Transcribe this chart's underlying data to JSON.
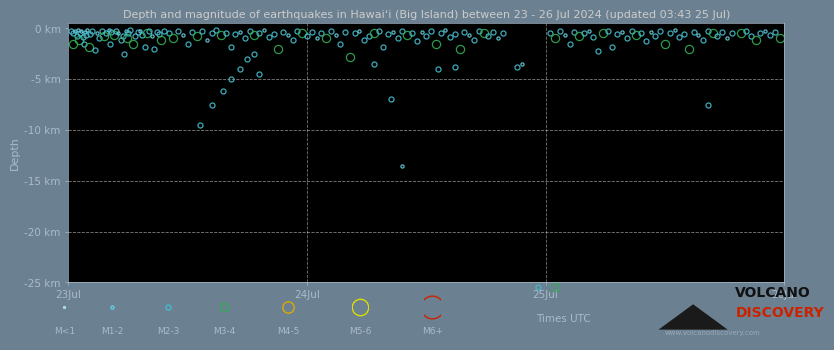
{
  "title": "Depth and magnitude of earthquakes in Hawaiʻi (Big Island) between 23 - 26 Jul 2024 (updated 03:43 25 Jul)",
  "bg_color": "#000000",
  "outer_bg_color": "#6b8090",
  "xlabel": "Times UTC",
  "ylabel": "Depth",
  "xlim": [
    23.0,
    26.0
  ],
  "ylim": [
    -25,
    0.5
  ],
  "yticks": [
    0,
    -5,
    -10,
    -15,
    -20,
    -25
  ],
  "ytick_labels": [
    "0 km",
    "-5 km",
    "-10 km",
    "-15 km",
    "-20 km",
    "-25 km"
  ],
  "xticks": [
    23,
    24,
    25,
    26
  ],
  "xtick_labels": [
    "23Jul",
    "24Jul",
    "25Jul",
    "26Jul"
  ],
  "vlines": [
    24,
    25
  ],
  "hlines": [
    -5,
    -10,
    -15,
    -20
  ],
  "mag_colors": {
    "M<1": "#aaddee",
    "M1-2": "#66ccdd",
    "M2-3": "#44bbcc",
    "M3-4": "#33aa55",
    "M4-5": "#ddaa00",
    "M5-6": "#dddd00",
    "M6+": "#cc2200"
  },
  "mag_sizes": {
    "M<1": 3,
    "M1-2": 5,
    "M2-3": 8,
    "M3-4": 13,
    "M4-5": 18,
    "M5-6": 26,
    "M6+": 36
  },
  "earthquakes": [
    {
      "t": 23.01,
      "d": -0.3,
      "m": "M2-3"
    },
    {
      "t": 23.02,
      "d": -0.5,
      "m": "M2-3"
    },
    {
      "t": 23.02,
      "d": -1.5,
      "m": "M3-4"
    },
    {
      "t": 23.03,
      "d": -0.3,
      "m": "M1-2"
    },
    {
      "t": 23.035,
      "d": -0.8,
      "m": "M2-3"
    },
    {
      "t": 23.04,
      "d": -0.2,
      "m": "M1-2"
    },
    {
      "t": 23.045,
      "d": -1.2,
      "m": "M3-4"
    },
    {
      "t": 23.05,
      "d": -0.5,
      "m": "M2-3"
    },
    {
      "t": 23.055,
      "d": -0.3,
      "m": "M1-2"
    },
    {
      "t": 23.06,
      "d": -0.9,
      "m": "M2-3"
    },
    {
      "t": 23.065,
      "d": -1.5,
      "m": "M2-3"
    },
    {
      "t": 23.07,
      "d": -0.4,
      "m": "M1-2"
    },
    {
      "t": 23.075,
      "d": -0.7,
      "m": "M2-3"
    },
    {
      "t": 23.08,
      "d": -0.2,
      "m": "M1-2"
    },
    {
      "t": 23.085,
      "d": -1.8,
      "m": "M3-4"
    },
    {
      "t": 23.09,
      "d": -0.6,
      "m": "M2-3"
    },
    {
      "t": 23.1,
      "d": -0.3,
      "m": "M2-3"
    },
    {
      "t": 23.11,
      "d": -2.1,
      "m": "M2-3"
    },
    {
      "t": 23.12,
      "d": -0.5,
      "m": "M1-2"
    },
    {
      "t": 23.13,
      "d": -1.0,
      "m": "M2-3"
    },
    {
      "t": 23.14,
      "d": -0.3,
      "m": "M2-3"
    },
    {
      "t": 23.15,
      "d": -0.8,
      "m": "M3-4"
    },
    {
      "t": 23.16,
      "d": -0.5,
      "m": "M2-3"
    },
    {
      "t": 23.17,
      "d": -0.2,
      "m": "M1-2"
    },
    {
      "t": 23.175,
      "d": -1.5,
      "m": "M2-3"
    },
    {
      "t": 23.18,
      "d": -0.4,
      "m": "M2-3"
    },
    {
      "t": 23.19,
      "d": -0.7,
      "m": "M3-4"
    },
    {
      "t": 23.2,
      "d": -0.3,
      "m": "M2-3"
    },
    {
      "t": 23.21,
      "d": -0.5,
      "m": "M1-2"
    },
    {
      "t": 23.22,
      "d": -1.2,
      "m": "M2-3"
    },
    {
      "t": 23.23,
      "d": -0.8,
      "m": "M2-3"
    },
    {
      "t": 23.235,
      "d": -2.5,
      "m": "M2-3"
    },
    {
      "t": 23.24,
      "d": -0.3,
      "m": "M1-2"
    },
    {
      "t": 23.245,
      "d": -1.0,
      "m": "M3-4"
    },
    {
      "t": 23.25,
      "d": -0.5,
      "m": "M2-3"
    },
    {
      "t": 23.26,
      "d": -0.2,
      "m": "M2-3"
    },
    {
      "t": 23.27,
      "d": -1.5,
      "m": "M3-4"
    },
    {
      "t": 23.28,
      "d": -0.8,
      "m": "M2-3"
    },
    {
      "t": 23.29,
      "d": -0.4,
      "m": "M2-3"
    },
    {
      "t": 23.3,
      "d": -0.3,
      "m": "M1-2"
    },
    {
      "t": 23.31,
      "d": -0.7,
      "m": "M2-3"
    },
    {
      "t": 23.32,
      "d": -1.8,
      "m": "M2-3"
    },
    {
      "t": 23.33,
      "d": -0.5,
      "m": "M3-4"
    },
    {
      "t": 23.34,
      "d": -0.3,
      "m": "M2-3"
    },
    {
      "t": 23.35,
      "d": -0.8,
      "m": "M1-2"
    },
    {
      "t": 23.36,
      "d": -2.0,
      "m": "M2-3"
    },
    {
      "t": 23.37,
      "d": -0.4,
      "m": "M2-3"
    },
    {
      "t": 23.38,
      "d": -0.6,
      "m": "M2-3"
    },
    {
      "t": 23.39,
      "d": -1.2,
      "m": "M3-4"
    },
    {
      "t": 23.4,
      "d": -0.3,
      "m": "M2-3"
    },
    {
      "t": 23.55,
      "d": -9.5,
      "m": "M2-3"
    },
    {
      "t": 23.6,
      "d": -7.5,
      "m": "M2-3"
    },
    {
      "t": 23.65,
      "d": -6.2,
      "m": "M2-3"
    },
    {
      "t": 23.68,
      "d": -5.0,
      "m": "M2-3"
    },
    {
      "t": 23.72,
      "d": -4.0,
      "m": "M2-3"
    },
    {
      "t": 23.75,
      "d": -3.0,
      "m": "M2-3"
    },
    {
      "t": 23.78,
      "d": -2.5,
      "m": "M2-3"
    },
    {
      "t": 23.8,
      "d": -4.5,
      "m": "M2-3"
    },
    {
      "t": 23.42,
      "d": -0.5,
      "m": "M2-3"
    },
    {
      "t": 23.44,
      "d": -1.0,
      "m": "M3-4"
    },
    {
      "t": 23.46,
      "d": -0.3,
      "m": "M2-3"
    },
    {
      "t": 23.48,
      "d": -0.7,
      "m": "M1-2"
    },
    {
      "t": 23.5,
      "d": -1.5,
      "m": "M2-3"
    },
    {
      "t": 23.52,
      "d": -0.4,
      "m": "M2-3"
    },
    {
      "t": 23.54,
      "d": -0.8,
      "m": "M3-4"
    },
    {
      "t": 23.56,
      "d": -0.3,
      "m": "M2-3"
    },
    {
      "t": 23.58,
      "d": -1.2,
      "m": "M1-2"
    },
    {
      "t": 23.6,
      "d": -0.5,
      "m": "M2-3"
    },
    {
      "t": 23.62,
      "d": -0.2,
      "m": "M2-3"
    },
    {
      "t": 23.64,
      "d": -0.7,
      "m": "M3-4"
    },
    {
      "t": 23.66,
      "d": -0.5,
      "m": "M2-3"
    },
    {
      "t": 23.68,
      "d": -1.8,
      "m": "M2-3"
    },
    {
      "t": 23.7,
      "d": -0.6,
      "m": "M2-3"
    },
    {
      "t": 23.72,
      "d": -0.4,
      "m": "M1-2"
    },
    {
      "t": 23.74,
      "d": -1.0,
      "m": "M2-3"
    },
    {
      "t": 23.76,
      "d": -0.3,
      "m": "M2-3"
    },
    {
      "t": 23.78,
      "d": -0.7,
      "m": "M3-4"
    },
    {
      "t": 23.8,
      "d": -0.5,
      "m": "M2-3"
    },
    {
      "t": 23.82,
      "d": -0.2,
      "m": "M1-2"
    },
    {
      "t": 23.84,
      "d": -0.9,
      "m": "M2-3"
    },
    {
      "t": 23.86,
      "d": -0.6,
      "m": "M2-3"
    },
    {
      "t": 23.88,
      "d": -2.0,
      "m": "M3-4"
    },
    {
      "t": 23.9,
      "d": -0.4,
      "m": "M2-3"
    },
    {
      "t": 23.92,
      "d": -0.7,
      "m": "M1-2"
    },
    {
      "t": 23.94,
      "d": -1.2,
      "m": "M2-3"
    },
    {
      "t": 23.96,
      "d": -0.3,
      "m": "M2-3"
    },
    {
      "t": 23.98,
      "d": -0.5,
      "m": "M3-4"
    },
    {
      "t": 24.0,
      "d": -0.8,
      "m": "M2-3"
    },
    {
      "t": 24.02,
      "d": -0.4,
      "m": "M2-3"
    },
    {
      "t": 24.04,
      "d": -1.0,
      "m": "M1-2"
    },
    {
      "t": 24.06,
      "d": -0.5,
      "m": "M2-3"
    },
    {
      "t": 24.08,
      "d": -1.0,
      "m": "M3-4"
    },
    {
      "t": 24.1,
      "d": -0.3,
      "m": "M2-3"
    },
    {
      "t": 24.12,
      "d": -0.7,
      "m": "M1-2"
    },
    {
      "t": 24.14,
      "d": -1.5,
      "m": "M2-3"
    },
    {
      "t": 24.16,
      "d": -0.4,
      "m": "M2-3"
    },
    {
      "t": 24.18,
      "d": -2.8,
      "m": "M3-4"
    },
    {
      "t": 24.2,
      "d": -0.5,
      "m": "M2-3"
    },
    {
      "t": 24.22,
      "d": -0.3,
      "m": "M1-2"
    },
    {
      "t": 24.24,
      "d": -1.2,
      "m": "M2-3"
    },
    {
      "t": 24.26,
      "d": -0.8,
      "m": "M2-3"
    },
    {
      "t": 24.28,
      "d": -0.5,
      "m": "M3-4"
    },
    {
      "t": 24.3,
      "d": -0.3,
      "m": "M2-3"
    },
    {
      "t": 24.32,
      "d": -1.8,
      "m": "M2-3"
    },
    {
      "t": 24.34,
      "d": -0.6,
      "m": "M2-3"
    },
    {
      "t": 24.36,
      "d": -0.4,
      "m": "M1-2"
    },
    {
      "t": 24.38,
      "d": -1.0,
      "m": "M2-3"
    },
    {
      "t": 24.4,
      "d": -0.3,
      "m": "M2-3"
    },
    {
      "t": 24.42,
      "d": -0.7,
      "m": "M3-4"
    },
    {
      "t": 24.44,
      "d": -0.5,
      "m": "M2-3"
    },
    {
      "t": 24.46,
      "d": -1.3,
      "m": "M2-3"
    },
    {
      "t": 24.48,
      "d": -0.4,
      "m": "M1-2"
    },
    {
      "t": 24.5,
      "d": -0.8,
      "m": "M2-3"
    },
    {
      "t": 24.52,
      "d": -0.3,
      "m": "M2-3"
    },
    {
      "t": 24.54,
      "d": -1.5,
      "m": "M3-4"
    },
    {
      "t": 24.56,
      "d": -0.5,
      "m": "M2-3"
    },
    {
      "t": 24.58,
      "d": -0.2,
      "m": "M1-2"
    },
    {
      "t": 24.6,
      "d": -0.9,
      "m": "M2-3"
    },
    {
      "t": 24.62,
      "d": -0.6,
      "m": "M2-3"
    },
    {
      "t": 24.64,
      "d": -2.0,
      "m": "M3-4"
    },
    {
      "t": 24.66,
      "d": -0.4,
      "m": "M2-3"
    },
    {
      "t": 24.68,
      "d": -0.7,
      "m": "M1-2"
    },
    {
      "t": 24.7,
      "d": -1.2,
      "m": "M2-3"
    },
    {
      "t": 24.72,
      "d": -0.3,
      "m": "M2-3"
    },
    {
      "t": 24.74,
      "d": -0.5,
      "m": "M3-4"
    },
    {
      "t": 24.76,
      "d": -0.8,
      "m": "M2-3"
    },
    {
      "t": 24.78,
      "d": -0.4,
      "m": "M2-3"
    },
    {
      "t": 24.8,
      "d": -1.0,
      "m": "M1-2"
    },
    {
      "t": 24.82,
      "d": -0.5,
      "m": "M2-3"
    },
    {
      "t": 24.35,
      "d": -7.0,
      "m": "M2-3"
    },
    {
      "t": 24.4,
      "d": -13.5,
      "m": "M1-2"
    },
    {
      "t": 24.55,
      "d": -4.0,
      "m": "M2-3"
    },
    {
      "t": 24.28,
      "d": -3.5,
      "m": "M2-3"
    },
    {
      "t": 24.62,
      "d": -3.8,
      "m": "M2-3"
    },
    {
      "t": 25.02,
      "d": -0.5,
      "m": "M2-3"
    },
    {
      "t": 25.04,
      "d": -1.0,
      "m": "M3-4"
    },
    {
      "t": 25.06,
      "d": -0.3,
      "m": "M2-3"
    },
    {
      "t": 25.08,
      "d": -0.7,
      "m": "M1-2"
    },
    {
      "t": 25.1,
      "d": -1.5,
      "m": "M2-3"
    },
    {
      "t": 25.12,
      "d": -0.4,
      "m": "M2-3"
    },
    {
      "t": 25.14,
      "d": -0.8,
      "m": "M3-4"
    },
    {
      "t": 25.16,
      "d": -0.5,
      "m": "M2-3"
    },
    {
      "t": 25.18,
      "d": -0.3,
      "m": "M1-2"
    },
    {
      "t": 25.2,
      "d": -0.9,
      "m": "M2-3"
    },
    {
      "t": 25.22,
      "d": -2.2,
      "m": "M2-3"
    },
    {
      "t": 25.24,
      "d": -0.5,
      "m": "M3-4"
    },
    {
      "t": 25.26,
      "d": -0.3,
      "m": "M2-3"
    },
    {
      "t": 25.28,
      "d": -1.8,
      "m": "M2-3"
    },
    {
      "t": 25.3,
      "d": -0.6,
      "m": "M2-3"
    },
    {
      "t": 25.32,
      "d": -0.4,
      "m": "M1-2"
    },
    {
      "t": 25.34,
      "d": -1.0,
      "m": "M2-3"
    },
    {
      "t": 25.36,
      "d": -0.3,
      "m": "M2-3"
    },
    {
      "t": 25.38,
      "d": -0.7,
      "m": "M3-4"
    },
    {
      "t": 25.4,
      "d": -0.5,
      "m": "M2-3"
    },
    {
      "t": 25.42,
      "d": -1.3,
      "m": "M2-3"
    },
    {
      "t": 25.44,
      "d": -0.4,
      "m": "M1-2"
    },
    {
      "t": 25.46,
      "d": -0.8,
      "m": "M2-3"
    },
    {
      "t": 25.48,
      "d": -0.3,
      "m": "M2-3"
    },
    {
      "t": 25.5,
      "d": -1.5,
      "m": "M3-4"
    },
    {
      "t": 25.52,
      "d": -0.5,
      "m": "M2-3"
    },
    {
      "t": 25.54,
      "d": -0.2,
      "m": "M1-2"
    },
    {
      "t": 25.56,
      "d": -0.9,
      "m": "M2-3"
    },
    {
      "t": 25.58,
      "d": -0.6,
      "m": "M2-3"
    },
    {
      "t": 25.6,
      "d": -2.0,
      "m": "M3-4"
    },
    {
      "t": 25.62,
      "d": -0.4,
      "m": "M2-3"
    },
    {
      "t": 25.64,
      "d": -0.7,
      "m": "M1-2"
    },
    {
      "t": 25.66,
      "d": -1.2,
      "m": "M2-3"
    },
    {
      "t": 25.68,
      "d": -0.3,
      "m": "M2-3"
    },
    {
      "t": 25.7,
      "d": -0.5,
      "m": "M3-4"
    },
    {
      "t": 25.72,
      "d": -0.8,
      "m": "M2-3"
    },
    {
      "t": 25.74,
      "d": -0.4,
      "m": "M2-3"
    },
    {
      "t": 25.76,
      "d": -1.0,
      "m": "M1-2"
    },
    {
      "t": 25.78,
      "d": -0.5,
      "m": "M2-3"
    },
    {
      "t": 25.68,
      "d": -7.5,
      "m": "M2-3"
    },
    {
      "t": 24.88,
      "d": -3.8,
      "m": "M2-3"
    },
    {
      "t": 24.9,
      "d": -3.5,
      "m": "M1-2"
    },
    {
      "t": 25.82,
      "d": -0.5,
      "m": "M3-4"
    },
    {
      "t": 25.84,
      "d": -0.3,
      "m": "M2-3"
    },
    {
      "t": 25.86,
      "d": -0.8,
      "m": "M2-3"
    },
    {
      "t": 25.88,
      "d": -1.2,
      "m": "M3-4"
    },
    {
      "t": 25.9,
      "d": -0.5,
      "m": "M2-3"
    },
    {
      "t": 25.92,
      "d": -0.3,
      "m": "M1-2"
    },
    {
      "t": 25.94,
      "d": -0.7,
      "m": "M2-3"
    },
    {
      "t": 25.96,
      "d": -0.4,
      "m": "M2-3"
    },
    {
      "t": 25.98,
      "d": -1.0,
      "m": "M3-4"
    }
  ],
  "below_axis_circles": [
    {
      "t": 24.97,
      "d": -0.3,
      "m": "M2-3"
    },
    {
      "t": 25.03,
      "d": -0.5,
      "m": "M3-4"
    }
  ],
  "legend_items": [
    {
      "label": "M<1",
      "color": "#aaddee",
      "size": 3
    },
    {
      "label": "M1-2",
      "color": "#66ccdd",
      "size": 5
    },
    {
      "label": "M2-3",
      "color": "#44bbcc",
      "size": 8
    },
    {
      "label": "M3-4",
      "color": "#33aa55",
      "size": 13
    },
    {
      "label": "M4-5",
      "color": "#ddaa00",
      "size": 18
    },
    {
      "label": "M5-6",
      "color": "#dddd00",
      "size": 26
    },
    {
      "label": "M6+",
      "color": "#cc2200",
      "size": 36
    }
  ],
  "title_color": "#cccccc",
  "tick_color": "#aabbcc",
  "axis_label_color": "#aabbcc",
  "grid_color": "#ffffff",
  "vline_color": "#ffffff",
  "logo_text1": "VOLCANO",
  "logo_text2": "DISCOVERY",
  "logo_url": "www.volcanodiscovery.com"
}
